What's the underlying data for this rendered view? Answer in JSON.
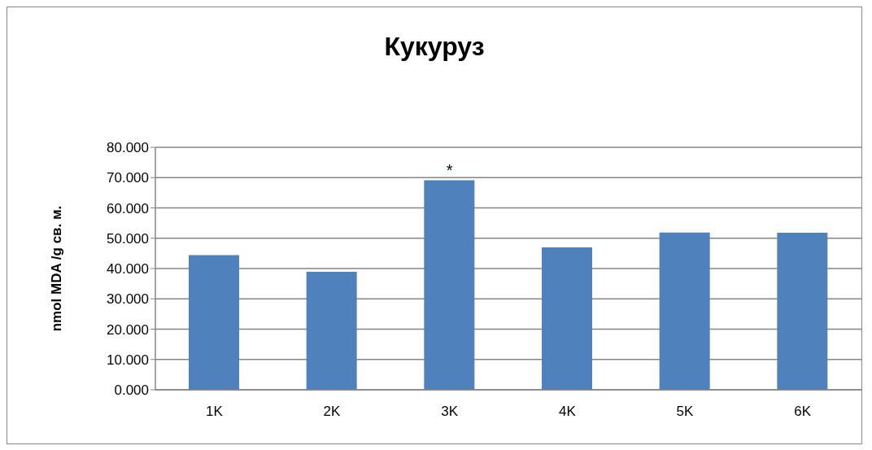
{
  "chart_data": {
    "type": "bar",
    "title": "Кукуруз",
    "ylabel": "nmol MDA /g св. м.",
    "categories": [
      "1K",
      "2K",
      "3K",
      "4K",
      "5K",
      "6K"
    ],
    "values": [
      44.4,
      38.9,
      69.1,
      47.0,
      51.9,
      51.8
    ],
    "color": "#4f81bd",
    "ylim": [
      0,
      80
    ],
    "yticks": [
      {
        "value": 0,
        "label": "0.000"
      },
      {
        "value": 10,
        "label": "10.000"
      },
      {
        "value": 20,
        "label": "20.000"
      },
      {
        "value": 30,
        "label": "30.000"
      },
      {
        "value": 40,
        "label": "40.000"
      },
      {
        "value": 50,
        "label": "50.000"
      },
      {
        "value": 60,
        "label": "60.000"
      },
      {
        "value": 70,
        "label": "70.000"
      },
      {
        "value": 80,
        "label": "80.000"
      }
    ],
    "grid": "y",
    "annotations": [
      {
        "text": "*",
        "x": "3K",
        "y": 69.1
      }
    ]
  }
}
